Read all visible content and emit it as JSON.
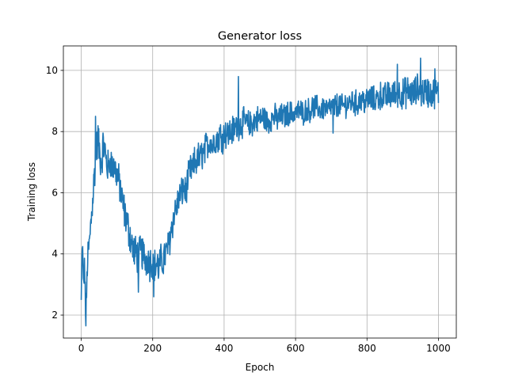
{
  "chart_data": {
    "type": "line",
    "title": "Generator loss",
    "xlabel": "Epoch",
    "ylabel": "Training loss",
    "xlim": [
      -50,
      1050
    ],
    "ylim": [
      1.25,
      10.8
    ],
    "xticks": [
      0,
      200,
      400,
      600,
      800,
      1000
    ],
    "yticks": [
      2,
      4,
      6,
      8,
      10
    ],
    "grid": true,
    "legend": "none",
    "series": [
      {
        "color": "#1f77b4",
        "anchors": [
          [
            0,
            2.4
          ],
          [
            3,
            4.4
          ],
          [
            6,
            3.0
          ],
          [
            10,
            3.5
          ],
          [
            13,
            1.65
          ],
          [
            17,
            3.7
          ],
          [
            22,
            4.2
          ],
          [
            27,
            5.0
          ],
          [
            32,
            5.8
          ],
          [
            37,
            6.6
          ],
          [
            42,
            7.3
          ],
          [
            47,
            7.8
          ],
          [
            52,
            7.2
          ],
          [
            57,
            7.0
          ],
          [
            62,
            7.6
          ],
          [
            67,
            7.3
          ],
          [
            72,
            6.9
          ],
          [
            77,
            6.8
          ],
          [
            82,
            7.1
          ],
          [
            87,
            6.8
          ],
          [
            92,
            6.9
          ],
          [
            97,
            6.7
          ],
          [
            102,
            6.5
          ],
          [
            107,
            6.3
          ],
          [
            112,
            5.9
          ],
          [
            117,
            5.6
          ],
          [
            122,
            5.3
          ],
          [
            127,
            5.1
          ],
          [
            132,
            4.8
          ],
          [
            137,
            4.6
          ],
          [
            142,
            4.3
          ],
          [
            147,
            4.1
          ],
          [
            152,
            4.0
          ],
          [
            157,
            4.0
          ],
          [
            162,
            3.9
          ],
          [
            167,
            4.1
          ],
          [
            172,
            4.0
          ],
          [
            177,
            3.9
          ],
          [
            182,
            3.8
          ],
          [
            187,
            3.9
          ],
          [
            192,
            3.7
          ],
          [
            197,
            3.8
          ],
          [
            202,
            3.7
          ],
          [
            207,
            3.6
          ],
          [
            212,
            3.7
          ],
          [
            217,
            3.5
          ],
          [
            222,
            3.8
          ],
          [
            227,
            3.7
          ],
          [
            232,
            3.9
          ],
          [
            237,
            4.0
          ],
          [
            242,
            4.2
          ],
          [
            247,
            4.4
          ],
          [
            252,
            4.8
          ],
          [
            257,
            5.1
          ],
          [
            262,
            5.4
          ],
          [
            267,
            5.5
          ],
          [
            272,
            5.8
          ],
          [
            277,
            5.9
          ],
          [
            282,
            6.0
          ],
          [
            287,
            6.2
          ],
          [
            292,
            6.0
          ],
          [
            297,
            6.3
          ],
          [
            302,
            6.6
          ],
          [
            307,
            6.8
          ],
          [
            312,
            6.7
          ],
          [
            317,
            7.0
          ],
          [
            322,
            7.0
          ],
          [
            327,
            7.2
          ],
          [
            332,
            7.0
          ],
          [
            337,
            7.3
          ],
          [
            342,
            7.2
          ],
          [
            347,
            7.4
          ],
          [
            352,
            7.6
          ],
          [
            357,
            7.6
          ],
          [
            362,
            7.8
          ],
          [
            367,
            7.5
          ],
          [
            372,
            7.7
          ],
          [
            377,
            7.8
          ],
          [
            382,
            7.7
          ],
          [
            387,
            7.9
          ],
          [
            392,
            7.9
          ],
          [
            397,
            7.8
          ],
          [
            402,
            8.0
          ],
          [
            410,
            7.9
          ],
          [
            420,
            8.0
          ],
          [
            430,
            8.1
          ],
          [
            440,
            8.2
          ],
          [
            450,
            8.3
          ],
          [
            460,
            8.3
          ],
          [
            470,
            8.2
          ],
          [
            480,
            8.3
          ],
          [
            490,
            8.4
          ],
          [
            500,
            8.4
          ],
          [
            510,
            8.5
          ],
          [
            520,
            8.3
          ],
          [
            530,
            8.4
          ],
          [
            540,
            8.5
          ],
          [
            550,
            8.4
          ],
          [
            560,
            8.5
          ],
          [
            570,
            8.5
          ],
          [
            580,
            8.6
          ],
          [
            590,
            8.6
          ],
          [
            600,
            8.6
          ],
          [
            610,
            8.7
          ],
          [
            620,
            8.6
          ],
          [
            630,
            8.7
          ],
          [
            640,
            8.7
          ],
          [
            650,
            8.8
          ],
          [
            660,
            8.8
          ],
          [
            670,
            8.7
          ],
          [
            680,
            8.8
          ],
          [
            690,
            8.7
          ],
          [
            700,
            8.8
          ],
          [
            710,
            8.8
          ],
          [
            720,
            8.9
          ],
          [
            730,
            8.8
          ],
          [
            740,
            8.9
          ],
          [
            750,
            8.9
          ],
          [
            760,
            9.0
          ],
          [
            770,
            8.9
          ],
          [
            780,
            9.0
          ],
          [
            790,
            9.0
          ],
          [
            800,
            9.0
          ],
          [
            810,
            9.1
          ],
          [
            820,
            9.0
          ],
          [
            830,
            9.1
          ],
          [
            840,
            9.2
          ],
          [
            850,
            9.1
          ],
          [
            860,
            9.2
          ],
          [
            870,
            9.2
          ],
          [
            880,
            9.2
          ],
          [
            890,
            9.3
          ],
          [
            900,
            9.2
          ],
          [
            910,
            9.3
          ],
          [
            920,
            9.3
          ],
          [
            930,
            9.2
          ],
          [
            940,
            9.4
          ],
          [
            950,
            9.3
          ],
          [
            960,
            9.3
          ],
          [
            970,
            9.3
          ],
          [
            980,
            9.2
          ],
          [
            990,
            9.3
          ],
          [
            1000,
            9.2
          ]
        ],
        "noise_amplitude": [
          [
            0,
            0.5
          ],
          [
            40,
            0.55
          ],
          [
            100,
            0.5
          ],
          [
            150,
            0.55
          ],
          [
            200,
            0.5
          ],
          [
            300,
            0.45
          ],
          [
            400,
            0.45
          ],
          [
            500,
            0.4
          ],
          [
            600,
            0.35
          ],
          [
            700,
            0.35
          ],
          [
            800,
            0.4
          ],
          [
            900,
            0.45
          ],
          [
            1000,
            0.45
          ]
        ],
        "extremes": [
          [
            13,
            1.65
          ],
          [
            40,
            8.5
          ],
          [
            203,
            2.6
          ],
          [
            160,
            2.75
          ],
          [
            440,
            9.8
          ],
          [
            950,
            10.4
          ],
          [
            990,
            10.05
          ],
          [
            885,
            10.2
          ],
          [
            705,
            7.95
          ]
        ]
      }
    ]
  }
}
